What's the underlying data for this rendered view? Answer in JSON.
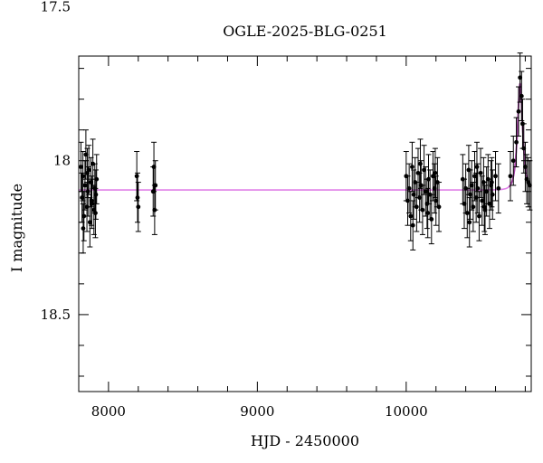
{
  "chart_data": {
    "type": "scatter",
    "title": "OGLE-2025-BLG-0251",
    "xlabel": "HJD - 2450000",
    "ylabel": "I magnitude",
    "xlim": [
      7800,
      10840
    ],
    "ylim": [
      18.75,
      17.66
    ],
    "y_inverted": true,
    "grid": false,
    "x_ticks": [
      {
        "value": 8000,
        "label": "8000"
      },
      {
        "value": 9000,
        "label": "9000"
      },
      {
        "value": 10000,
        "label": "10000"
      }
    ],
    "y_ticks": [
      {
        "value": 17.5,
        "label": "17.5"
      },
      {
        "value": 18.0,
        "label": "18"
      },
      {
        "value": 18.5,
        "label": "18.5"
      }
    ],
    "colors": {
      "points": "#000000",
      "model": "#e080e8",
      "model_peak": "#a040a0"
    },
    "observations": {
      "x": [
        7815,
        7822,
        7828,
        7835,
        7842,
        7848,
        7855,
        7862,
        7868,
        7875,
        7882,
        7888,
        7895,
        7902,
        7908,
        7915,
        7920,
        7830,
        7858,
        7886,
        7912,
        8190,
        8195,
        8200,
        8300,
        8305,
        8310,
        8315,
        10000,
        10010,
        10020,
        10030,
        10040,
        10050,
        10060,
        10070,
        10080,
        10090,
        10100,
        10110,
        10120,
        10130,
        10140,
        10150,
        10160,
        10170,
        10180,
        10190,
        10200,
        10210,
        10220,
        10045,
        10095,
        10145,
        10195,
        10380,
        10390,
        10400,
        10410,
        10420,
        10430,
        10440,
        10450,
        10460,
        10470,
        10480,
        10490,
        10500,
        10510,
        10520,
        10530,
        10540,
        10550,
        10560,
        10570,
        10580,
        10600,
        10620,
        10425,
        10475,
        10525,
        10575,
        10700,
        10720,
        10740,
        10755,
        10765,
        10775,
        10782,
        10790,
        10800,
        10810,
        10820,
        10830
      ],
      "y": [
        18.02,
        18.12,
        18.05,
        18.18,
        18.08,
        17.98,
        18.15,
        18.1,
        18.03,
        18.2,
        18.07,
        18.14,
        18.01,
        18.16,
        18.09,
        18.11,
        18.06,
        18.22,
        18.04,
        18.13,
        18.17,
        18.05,
        18.12,
        18.15,
        18.1,
        18.02,
        18.16,
        18.08,
        18.05,
        18.13,
        18.09,
        18.18,
        18.02,
        18.11,
        18.07,
        18.15,
        18.04,
        18.12,
        18.08,
        18.16,
        18.03,
        18.1,
        18.14,
        18.06,
        18.11,
        18.19,
        18.05,
        18.09,
        18.13,
        18.07,
        18.15,
        18.21,
        18.01,
        18.17,
        18.04,
        18.06,
        18.14,
        18.09,
        18.17,
        18.03,
        18.11,
        18.08,
        18.15,
        18.05,
        18.12,
        18.09,
        18.18,
        18.04,
        18.13,
        18.07,
        18.16,
        18.1,
        18.06,
        18.14,
        18.08,
        18.11,
        18.05,
        18.09,
        18.2,
        18.02,
        18.15,
        18.07,
        18.05,
        18.0,
        17.94,
        17.84,
        17.73,
        17.79,
        17.88,
        17.96,
        18.02,
        18.06,
        18.07,
        18.08
      ],
      "yerr": 0.08
    },
    "model": {
      "name": "",
      "baseline": 18.095,
      "t0": 10765,
      "u0": 0.7,
      "tE": 25
    }
  }
}
